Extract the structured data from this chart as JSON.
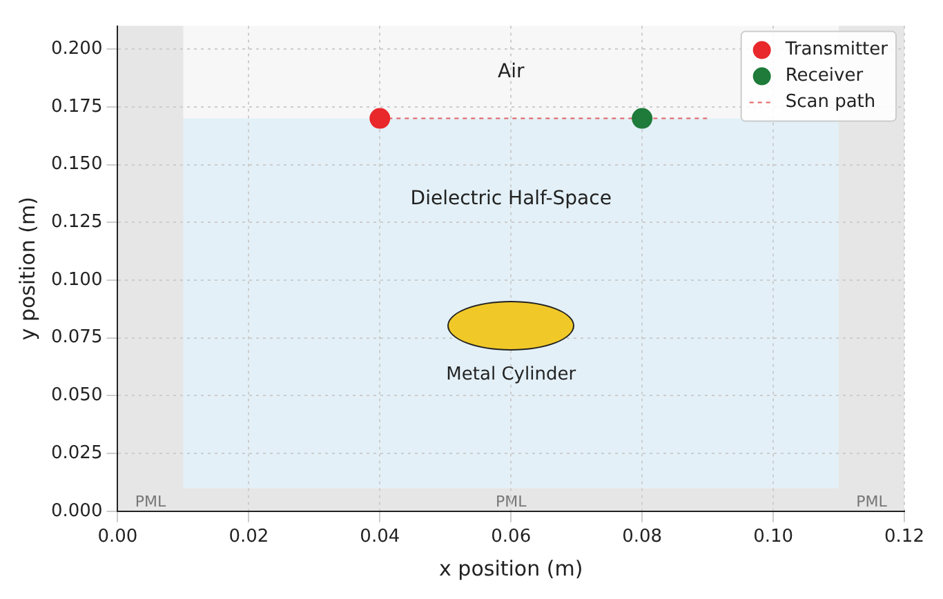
{
  "chart_data": {
    "type": "scatter",
    "xlabel": "x position (m)",
    "ylabel": "y position (m)",
    "xlim": [
      0,
      0.12
    ],
    "ylim": [
      0,
      0.21
    ],
    "xticks": [
      {
        "value": 0,
        "label": "0.00"
      },
      {
        "value": 0.02,
        "label": "0.02"
      },
      {
        "value": 0.04,
        "label": "0.04"
      },
      {
        "value": 0.06,
        "label": "0.06"
      },
      {
        "value": 0.08,
        "label": "0.08"
      },
      {
        "value": 0.1,
        "label": "0.10"
      },
      {
        "value": 0.12,
        "label": "0.12"
      }
    ],
    "yticks": [
      {
        "value": 0,
        "label": "0.000"
      },
      {
        "value": 0.025,
        "label": "0.025"
      },
      {
        "value": 0.05,
        "label": "0.050"
      },
      {
        "value": 0.075,
        "label": "0.075"
      },
      {
        "value": 0.1,
        "label": "0.100"
      },
      {
        "value": 0.125,
        "label": "0.125"
      },
      {
        "value": 0.15,
        "label": "0.150"
      },
      {
        "value": 0.175,
        "label": "0.175"
      },
      {
        "value": 0.2,
        "label": "0.200"
      }
    ],
    "series": [
      {
        "name": "Transmitter",
        "color": "#e8282b",
        "x": [
          0.04
        ],
        "values": [
          0.17
        ]
      },
      {
        "name": "Receiver",
        "color": "#1e7b3a",
        "x": [
          0.08
        ],
        "values": [
          0.17
        ]
      },
      {
        "name": "Scan path",
        "type": "line",
        "color": "#e06060",
        "line_style": "dashed",
        "marker": "none",
        "x": [
          0.04,
          0.09
        ],
        "values": [
          0.17,
          0.17
        ]
      }
    ],
    "bands": [
      {
        "axis": "y",
        "from": 0.17,
        "to": 0.21,
        "label": "Air",
        "color": "#f7f7f7"
      },
      {
        "axis": "y",
        "from": 0.01,
        "to": 0.17,
        "label": null,
        "color": "#e3f0f7"
      },
      {
        "axis": "y",
        "from": 0,
        "to": 0.01,
        "label": "PML",
        "color": "#e6e6e6"
      },
      {
        "axis": "x",
        "from": 0,
        "to": 0.01,
        "label": "PML",
        "color": "#e6e6e6"
      },
      {
        "axis": "x",
        "from": 0.11,
        "to": 0.12,
        "label": "PML",
        "color": "#e6e6e6"
      }
    ],
    "annotations": [
      "Dielectric Half-Space",
      "Metal Cylinder"
    ],
    "marker": "circle",
    "grid": true,
    "legend": "top right"
  }
}
